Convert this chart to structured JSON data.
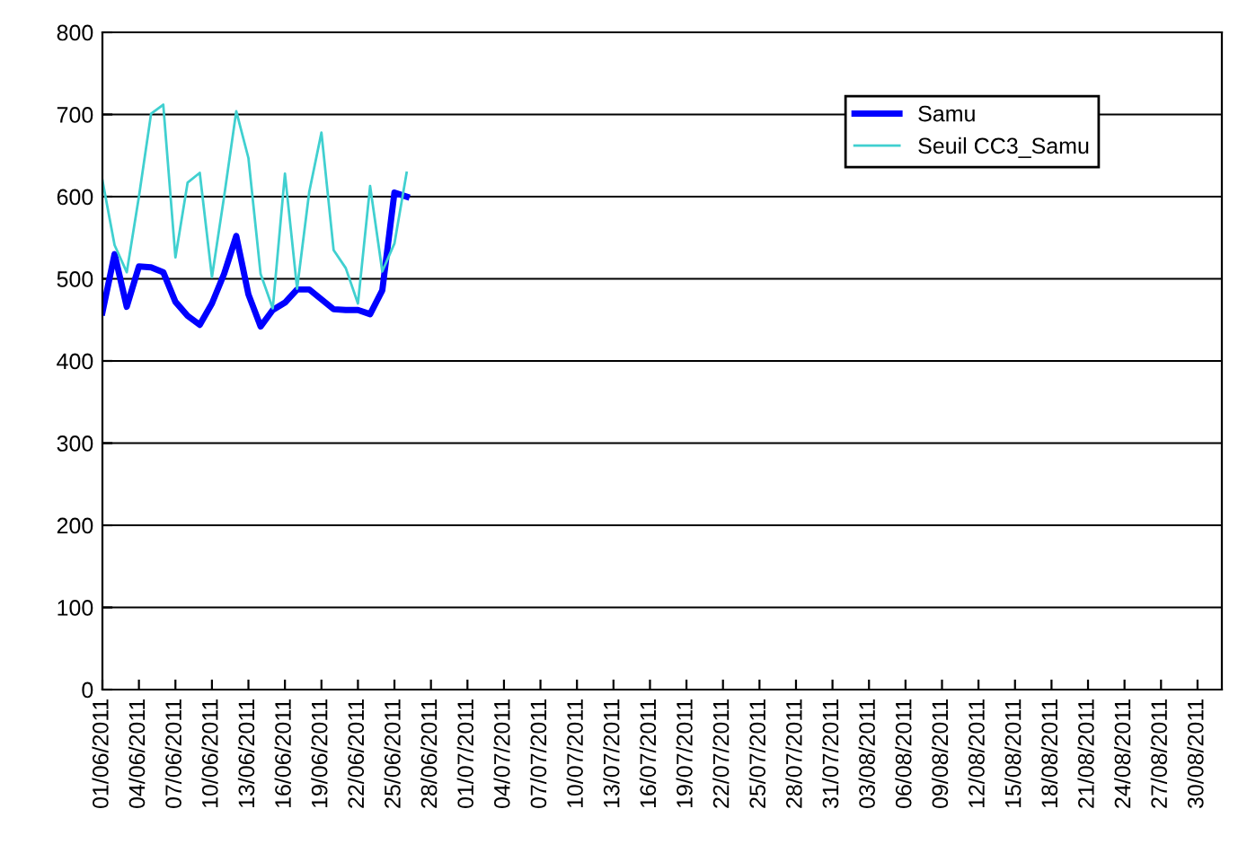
{
  "chart_data": {
    "type": "line",
    "categories": [
      "01/06/2011",
      null,
      null,
      "04/06/2011",
      null,
      null,
      "07/06/2011",
      null,
      null,
      "10/06/2011",
      null,
      null,
      "13/06/2011",
      null,
      null,
      "16/06/2011",
      null,
      null,
      "19/06/2011",
      null,
      null,
      "22/06/2011",
      null,
      null,
      "25/06/2011",
      null,
      null,
      "28/06/2011",
      null,
      null,
      "01/07/2011",
      null,
      null,
      "04/07/2011",
      null,
      null,
      "07/07/2011",
      null,
      null,
      "10/07/2011",
      null,
      null,
      "13/07/2011",
      null,
      null,
      "16/07/2011",
      null,
      null,
      "19/07/2011",
      null,
      null,
      "22/07/2011",
      null,
      null,
      "25/07/2011",
      null,
      null,
      "28/07/2011",
      null,
      null,
      "31/07/2011",
      null,
      null,
      "03/08/2011",
      null,
      null,
      "06/08/2011",
      null,
      null,
      "09/08/2011",
      null,
      null,
      "12/08/2011",
      null,
      null,
      "15/08/2011",
      null,
      null,
      "18/08/2011",
      null,
      null,
      "21/08/2011",
      null,
      null,
      "24/08/2011",
      null,
      null,
      "27/08/2011",
      null,
      null,
      "30/08/2011",
      null
    ],
    "series": [
      {
        "name": "Samu",
        "color": "#0000ff",
        "values": [
          459,
          530,
          466,
          515,
          514,
          508,
          472,
          455,
          444,
          470,
          506,
          552,
          481,
          442,
          462,
          471,
          487,
          487,
          475,
          463,
          462,
          462,
          457,
          486,
          605,
          600,
          null,
          null,
          null,
          null,
          null,
          null,
          null,
          null,
          null,
          null,
          null,
          null,
          null,
          null,
          null,
          null,
          null,
          null,
          null,
          null,
          null,
          null,
          null,
          null,
          null,
          null,
          null,
          null,
          null,
          null,
          null,
          null,
          null,
          null,
          null,
          null,
          null,
          null,
          null,
          null,
          null,
          null,
          null,
          null,
          null,
          null,
          null,
          null,
          null,
          null,
          null,
          null,
          null,
          null,
          null,
          null,
          null,
          null,
          null,
          null,
          null,
          null,
          null,
          null,
          null,
          null
        ]
      },
      {
        "name": "Seuil CC3_Samu",
        "color": "#40d0d0",
        "values": [
          620,
          541,
          508,
          600,
          701,
          712,
          526,
          617,
          629,
          502,
          600,
          704,
          647,
          506,
          464,
          628,
          488,
          606,
          678,
          535,
          513,
          470,
          613,
          509,
          543,
          629,
          null,
          null,
          null,
          null,
          null,
          null,
          null,
          null,
          null,
          null,
          null,
          null,
          null,
          null,
          null,
          null,
          null,
          null,
          null,
          null,
          null,
          null,
          null,
          null,
          null,
          null,
          null,
          null,
          null,
          null,
          null,
          null,
          null,
          null,
          null,
          null,
          null,
          null,
          null,
          null,
          null,
          null,
          null,
          null,
          null,
          null,
          null,
          null,
          null,
          null,
          null,
          null,
          null,
          null,
          null,
          null,
          null,
          null,
          null,
          null,
          null,
          null,
          null,
          null,
          null,
          null
        ]
      }
    ],
    "ylim": [
      0,
      800
    ],
    "yticks": [
      0,
      100,
      200,
      300,
      400,
      500,
      600,
      700,
      800
    ],
    "grid": "y",
    "legend": "top right",
    "marker": "none",
    "line_style": "solid"
  }
}
